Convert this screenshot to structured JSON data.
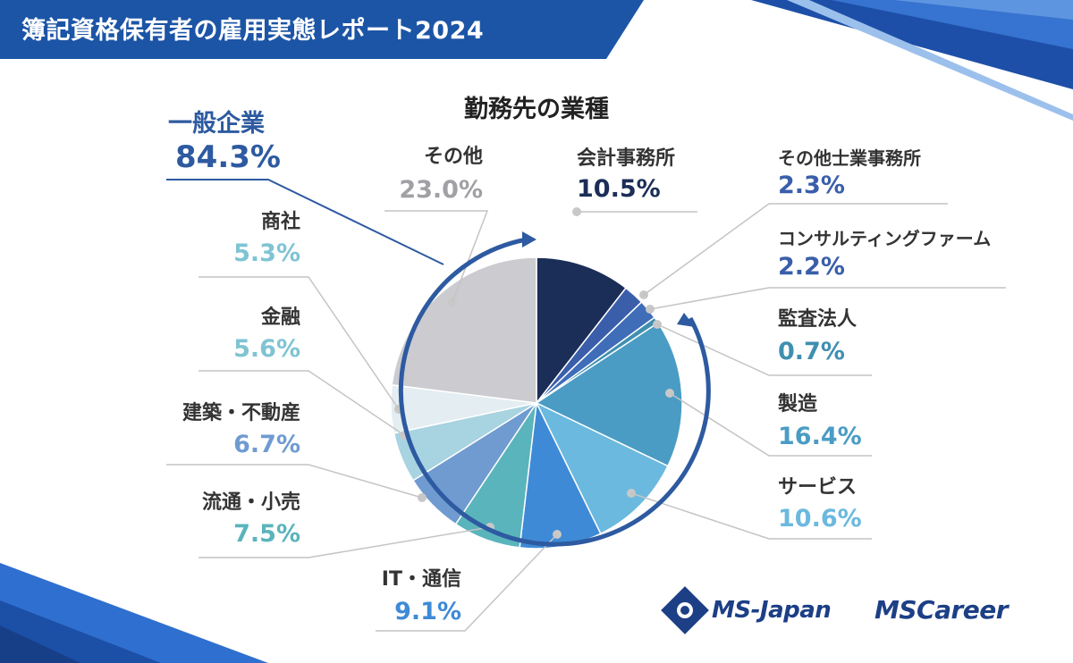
{
  "header": {
    "title": "簿記資格保有者の雇用実態レポート2024"
  },
  "brand": {
    "logo1": "MS-Japan",
    "logo2": "MSCareer"
  },
  "colors": {
    "brand_blue": "#1c55a6",
    "accent": "#2d5aa0"
  },
  "chart_data": {
    "type": "pie",
    "title": "勤務先の業種",
    "group": {
      "label": "一般企業",
      "value_text": "84.3%",
      "value": 84.3
    },
    "categories": [
      "会計事務所",
      "その他士業事務所",
      "コンサルティングファーム",
      "監査法人",
      "製造",
      "サービス",
      "IT・通信",
      "流通・小売",
      "建築・不動産",
      "金融",
      "商社",
      "その他"
    ],
    "values": [
      10.5,
      2.3,
      2.2,
      0.7,
      16.4,
      10.6,
      9.1,
      7.5,
      6.7,
      5.6,
      5.3,
      23.0
    ],
    "value_labels": [
      "10.5%",
      "2.3%",
      "2.2%",
      "0.7%",
      "16.4%",
      "10.6%",
      "9.1%",
      "7.5%",
      "6.7%",
      "5.6%",
      "5.3%",
      "23.0%"
    ],
    "colors": [
      "#1b2e57",
      "#3a5eaa",
      "#3f6db8",
      "#3f8fb0",
      "#4a9cc4",
      "#6bb9de",
      "#3e8ad6",
      "#5ab4bc",
      "#6f9bd1",
      "#a8d3e1",
      "#e4edf1",
      "#cbcbd0"
    ],
    "label_colors": [
      "#1b2e57",
      "#3a5eaa",
      "#3a5eaa",
      "#3f8fb0",
      "#4a9cc4",
      "#6bb9de",
      "#3e8ad6",
      "#5ab4bc",
      "#6f9bd1",
      "#7fc4d3",
      "#7fc4d3",
      "#a0a0a5"
    ]
  }
}
